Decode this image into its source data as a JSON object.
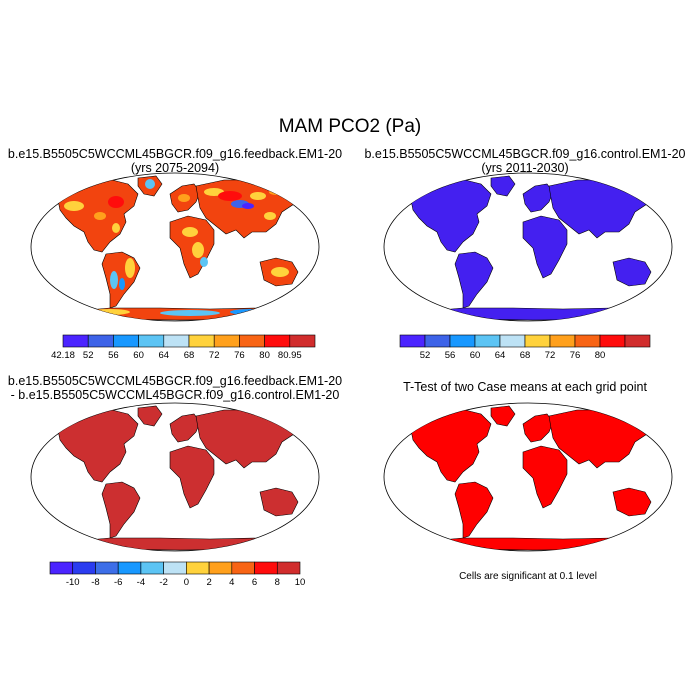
{
  "main_title": "MAM PCO2 (Pa)",
  "panels": [
    {
      "title_line1": "b.e15.B5505C5WCCML45BGCR.f09_g16.feedback.EM1-20",
      "title_line2": "(yrs 2075-2094)",
      "fill": "mixed",
      "colorbar": {
        "colors": [
          "#4b24ff",
          "#3d63e8",
          "#1898ff",
          "#5cc4f4",
          "#bde2f5",
          "#ffd23c",
          "#ffa01c",
          "#f86414",
          "#ff0c0c",
          "#d12d2d"
        ],
        "labels": [
          "42.18",
          "52",
          "56",
          "60",
          "64",
          "68",
          "72",
          "76",
          "80",
          "80.95"
        ],
        "label_mode": "edges"
      }
    },
    {
      "title_line1": "b.e15.B5505C5WCCML45BGCR.f09_g16.control.EM1-20",
      "title_line2": "(yrs 2011-2030)",
      "fill": "#4420f0",
      "colorbar": {
        "colors": [
          "#4b24ff",
          "#3d63e8",
          "#1898ff",
          "#5cc4f4",
          "#bde2f5",
          "#ffd23c",
          "#ffa01c",
          "#f86414",
          "#ff0c0c",
          "#d12d2d"
        ],
        "labels": [
          "52",
          "56",
          "60",
          "64",
          "68",
          "72",
          "76",
          "80"
        ],
        "label_mode": "inner"
      }
    },
    {
      "title_line1": "b.e15.B5505C5WCCML45BGCR.f09_g16.feedback.EM1-20",
      "title_line2": "- b.e15.B5505C5WCCML45BGCR.f09_g16.control.EM1-20",
      "fill": "#cc2f30",
      "colorbar": {
        "colors": [
          "#4b24ff",
          "#2b3cf0",
          "#3d6ee8",
          "#1898ff",
          "#5cc4f4",
          "#bde2f5",
          "#ffd23c",
          "#ffa01c",
          "#f86414",
          "#ff0c0c",
          "#d12d2d"
        ],
        "labels": [
          "-10",
          "-8",
          "-6",
          "-4",
          "-2",
          "0",
          "2",
          "4",
          "6",
          "8",
          "10"
        ],
        "label_mode": "inner"
      }
    },
    {
      "title_line1": "T-Test of two Case means at each grid point",
      "fill": "#ff0000",
      "note": "Cells are significant at 0.1 level"
    }
  ]
}
